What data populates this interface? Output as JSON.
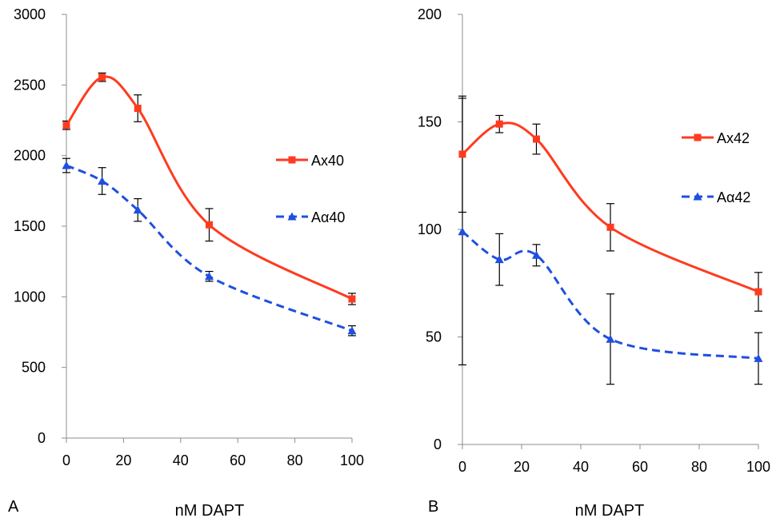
{
  "chart_data": [
    {
      "panel_label": "A",
      "type": "line",
      "xlabel": "nM DAPT",
      "ylabel": "",
      "xlim": [
        0,
        100
      ],
      "ylim": [
        0,
        3000
      ],
      "x_ticks": [
        0,
        20,
        40,
        60,
        80,
        100
      ],
      "y_ticks": [
        0,
        500,
        1000,
        1500,
        2000,
        2500,
        3000
      ],
      "legend_position": "right",
      "series": [
        {
          "name": "Ax40",
          "color": "#ff3b1f",
          "style": "solid",
          "marker": "square",
          "x": [
            0,
            12.5,
            25,
            50,
            100
          ],
          "y": [
            2215,
            2555,
            2335,
            1510,
            985
          ],
          "err": [
            30,
            30,
            95,
            115,
            40
          ]
        },
        {
          "name": "Aα40",
          "color": "#1f4fe0",
          "style": "dashed",
          "marker": "triangle",
          "x": [
            0,
            12.5,
            25,
            50,
            100
          ],
          "y": [
            1930,
            1820,
            1615,
            1145,
            760
          ],
          "err": [
            50,
            95,
            80,
            35,
            35
          ]
        }
      ]
    },
    {
      "panel_label": "B",
      "type": "line",
      "xlabel": "nM DAPT",
      "ylabel": "",
      "xlim": [
        0,
        100
      ],
      "ylim": [
        0,
        200
      ],
      "x_ticks": [
        0,
        20,
        40,
        60,
        80,
        100
      ],
      "y_ticks": [
        0,
        50,
        100,
        150,
        200
      ],
      "legend_position": "right",
      "series": [
        {
          "name": "Ax42",
          "color": "#ff3b1f",
          "style": "solid",
          "marker": "square",
          "x": [
            0,
            12.5,
            25,
            50,
            100
          ],
          "y": [
            135,
            149,
            142,
            101,
            71
          ],
          "err": [
            27,
            4,
            7,
            11,
            9
          ]
        },
        {
          "name": "Aα42",
          "color": "#1f4fe0",
          "style": "dashed",
          "marker": "triangle",
          "x": [
            0,
            12.5,
            25,
            50,
            100
          ],
          "y": [
            99,
            86,
            88,
            49,
            40
          ],
          "err": [
            62,
            12,
            5,
            21,
            12
          ]
        }
      ]
    }
  ]
}
